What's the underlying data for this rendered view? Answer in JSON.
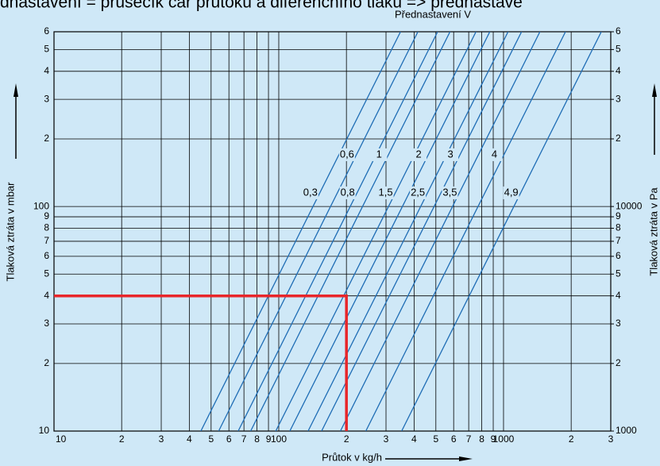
{
  "chart_data": {
    "type": "line",
    "title": "dnastavení = průsečík čar průtoku a diferenčního tlaku => přednastave",
    "subtitle": "Přednastavení V",
    "xlabel": "Průtok v kg/h",
    "ylabel": "Tlaková ztráta v mbar",
    "y2label": "Tlaková ztráta v Pa",
    "xscale": "log",
    "yscale": "log",
    "grid": true,
    "xlim": [
      10,
      3000
    ],
    "ylim": [
      10,
      600
    ],
    "y2lim": [
      1000,
      60000
    ],
    "xticks": [
      10,
      {
        "value": 20,
        "label": "2"
      },
      {
        "value": 30,
        "label": "3"
      },
      {
        "value": 40,
        "label": "4"
      },
      {
        "value": 50,
        "label": "5"
      },
      {
        "value": 60,
        "label": "6"
      },
      {
        "value": 70,
        "label": "7"
      },
      {
        "value": 80,
        "label": "8"
      },
      {
        "value": 90,
        "label": "9"
      },
      100,
      {
        "value": 200,
        "label": "2"
      },
      {
        "value": 300,
        "label": "3"
      },
      {
        "value": 400,
        "label": "4"
      },
      {
        "value": 500,
        "label": "5"
      },
      {
        "value": 600,
        "label": "6"
      },
      {
        "value": 700,
        "label": "7"
      },
      {
        "value": 800,
        "label": "8"
      },
      {
        "value": 900,
        "label": "9"
      },
      1000,
      {
        "value": 2000,
        "label": "2"
      },
      {
        "value": 3000,
        "label": "3"
      }
    ],
    "yticks": [
      10,
      {
        "value": 20,
        "label": "2"
      },
      {
        "value": 30,
        "label": "3"
      },
      {
        "value": 40,
        "label": "4"
      },
      {
        "value": 50,
        "label": "5"
      },
      {
        "value": 60,
        "label": "6"
      },
      {
        "value": 70,
        "label": "7"
      },
      {
        "value": 80,
        "label": "8"
      },
      {
        "value": 90,
        "label": "9"
      },
      100,
      {
        "value": 200,
        "label": "2"
      },
      {
        "value": 300,
        "label": "3"
      },
      {
        "value": 400,
        "label": "4"
      },
      {
        "value": 500,
        "label": "5"
      },
      {
        "value": 600,
        "label": "6"
      }
    ],
    "y2ticks": [
      1000,
      {
        "value": 2000,
        "label": "2"
      },
      {
        "value": 3000,
        "label": "3"
      },
      {
        "value": 4000,
        "label": "4"
      },
      {
        "value": 5000,
        "label": "5"
      },
      {
        "value": 6000,
        "label": "6"
      },
      {
        "value": 7000,
        "label": "7"
      },
      {
        "value": 8000,
        "label": "8"
      },
      {
        "value": 9000,
        "label": "9"
      },
      10000,
      {
        "value": 20000,
        "label": "2"
      },
      {
        "value": 30000,
        "label": "3"
      },
      {
        "value": 40000,
        "label": "4"
      },
      {
        "value": 50000,
        "label": "5"
      },
      {
        "value": 60000,
        "label": "6"
      }
    ],
    "series": [
      {
        "name": "0,3",
        "color": "#1f6db5",
        "x": [
          45,
          142,
          348
        ],
        "values": [
          10,
          100,
          600
        ]
      },
      {
        "name": "0,6",
        "color": "#1f6db5",
        "x": [
          54,
          170,
          416
        ],
        "values": [
          10,
          100,
          600
        ]
      },
      {
        "name": "0,8",
        "color": "#1f6db5",
        "x": [
          66,
          208,
          509
        ],
        "values": [
          10,
          100,
          600
        ]
      },
      {
        "name": "1",
        "color": "#1f6db5",
        "x": [
          75,
          236,
          578
        ],
        "values": [
          10,
          100,
          600
        ]
      },
      {
        "name": "1,5",
        "color": "#1f6db5",
        "x": [
          97,
          308,
          754
        ],
        "values": [
          10,
          100,
          600
        ]
      },
      {
        "name": "2",
        "color": "#1f6db5",
        "x": [
          112,
          355,
          869
        ],
        "values": [
          10,
          100,
          600
        ]
      },
      {
        "name": "2,5",
        "color": "#1f6db5",
        "x": [
          135,
          428,
          1048
        ],
        "values": [
          10,
          100,
          600
        ]
      },
      {
        "name": "3",
        "color": "#1f6db5",
        "x": [
          155,
          491,
          1203
        ],
        "values": [
          10,
          100,
          600
        ]
      },
      {
        "name": "3,5",
        "color": "#1f6db5",
        "x": [
          188,
          593,
          1452
        ],
        "values": [
          10,
          100,
          600
        ]
      },
      {
        "name": "4",
        "color": "#1f6db5",
        "x": [
          244,
          770,
          1886
        ],
        "values": [
          10,
          100,
          600
        ]
      },
      {
        "name": "4,9",
        "color": "#1f6db5",
        "x": [
          352,
          1112,
          2723
        ],
        "values": [
          10,
          100,
          600
        ]
      }
    ],
    "highlight": {
      "color": "#e8262a",
      "x": [
        10,
        200,
        200
      ],
      "values": [
        40,
        40,
        10
      ]
    }
  }
}
